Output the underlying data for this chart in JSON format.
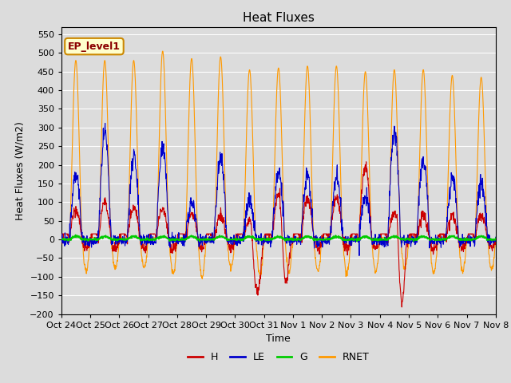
{
  "title": "Heat Fluxes",
  "xlabel": "Time",
  "ylabel": "Heat Fluxes (W/m2)",
  "ylim": [
    -200,
    570
  ],
  "yticks": [
    -200,
    -150,
    -100,
    -50,
    0,
    50,
    100,
    150,
    200,
    250,
    300,
    350,
    400,
    450,
    500,
    550
  ],
  "annotation": "EP_level1",
  "bg_color": "#dcdcdc",
  "plot_bg_color": "#dcdcdc",
  "legend_labels": [
    "H",
    "LE",
    "G",
    "RNET"
  ],
  "colors": {
    "H": "#cc0000",
    "LE": "#0000cc",
    "G": "#00cc00",
    "RNET": "#ff9900"
  },
  "line_width": 0.8,
  "n_days": 15,
  "points_per_day": 96,
  "xtick_labels": [
    "Oct 24",
    "Oct 25",
    "Oct 26",
    "Oct 27",
    "Oct 28",
    "Oct 29",
    "Oct 30",
    "Oct 31",
    "Nov 1",
    "Nov 2",
    "Nov 3",
    "Nov 4",
    "Nov 5",
    "Nov 6",
    "Nov 7",
    "Nov 8"
  ],
  "grid_color": "#c8c8c8",
  "grid_alpha": 1.0
}
